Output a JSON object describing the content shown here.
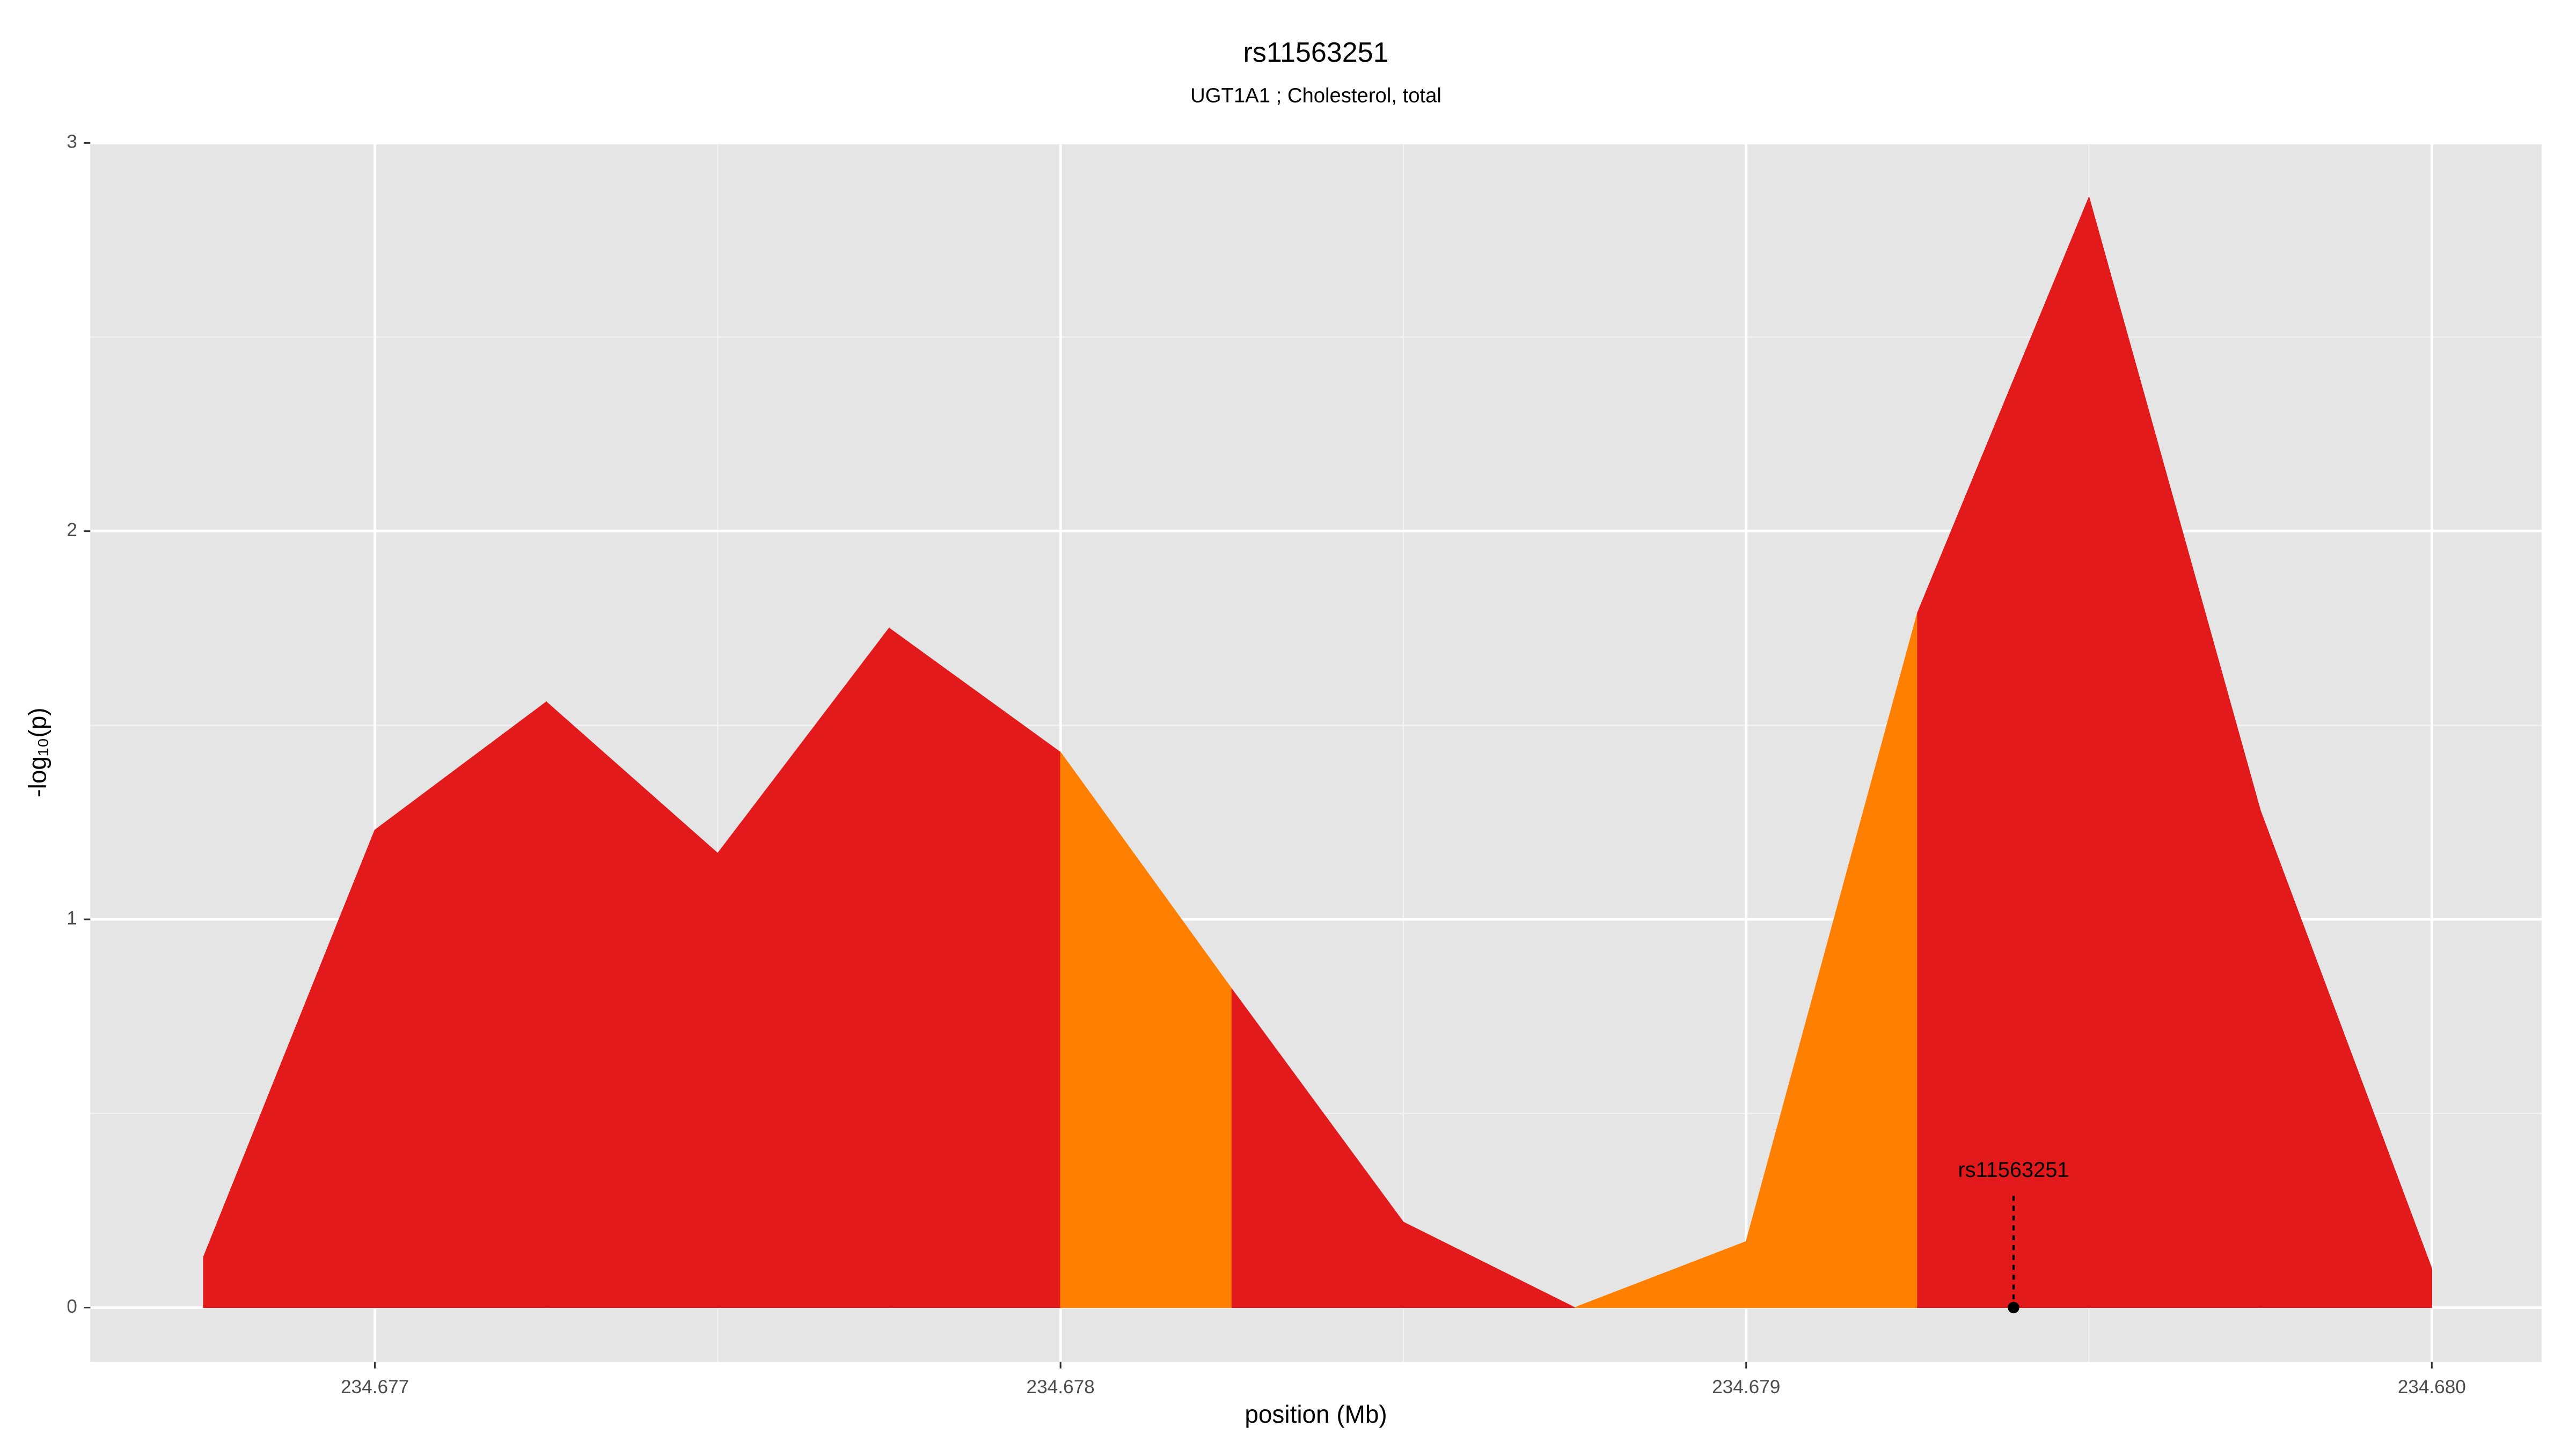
{
  "chart_data": {
    "type": "area",
    "title": "rs11563251",
    "subtitle": "UGT1A1 ; Cholesterol, total",
    "x_label": "position (Mb)",
    "y_label": "-log₁₀(p)",
    "x": [
      234.67675,
      234.677,
      234.67725,
      234.6775,
      234.67775,
      234.678,
      234.67825,
      234.6785,
      234.67875,
      234.679,
      234.67925,
      234.6795,
      234.67975,
      234.68
    ],
    "values": [
      0.13,
      1.23,
      1.56,
      1.17,
      1.75,
      1.43,
      0.82,
      0.22,
      0,
      0.17,
      1.79,
      2.86,
      1.28,
      0.1
    ],
    "segment_colors": [
      "#e31a1c",
      "#e31a1c",
      "#e31a1c",
      "#e31a1c",
      "#e31a1c",
      "#ff7f00",
      "#e31a1c",
      "#e31a1c",
      "#ff7f00",
      "#ff7f00",
      "#e31a1c",
      "#e31a1c",
      "#e31a1c"
    ],
    "annotations": [
      {
        "text": "rs11563251",
        "x": 234.67939,
        "y": 0
      }
    ],
    "xlim": [
      234.676585,
      234.68016
    ],
    "ylim": [
      -0.14,
      3.0
    ],
    "xticks": [
      234.677,
      234.678,
      234.679,
      {
        "value": 234.68,
        "label": "234.680"
      }
    ],
    "yticks": [
      0,
      1,
      2,
      3
    ],
    "grid": true
  }
}
